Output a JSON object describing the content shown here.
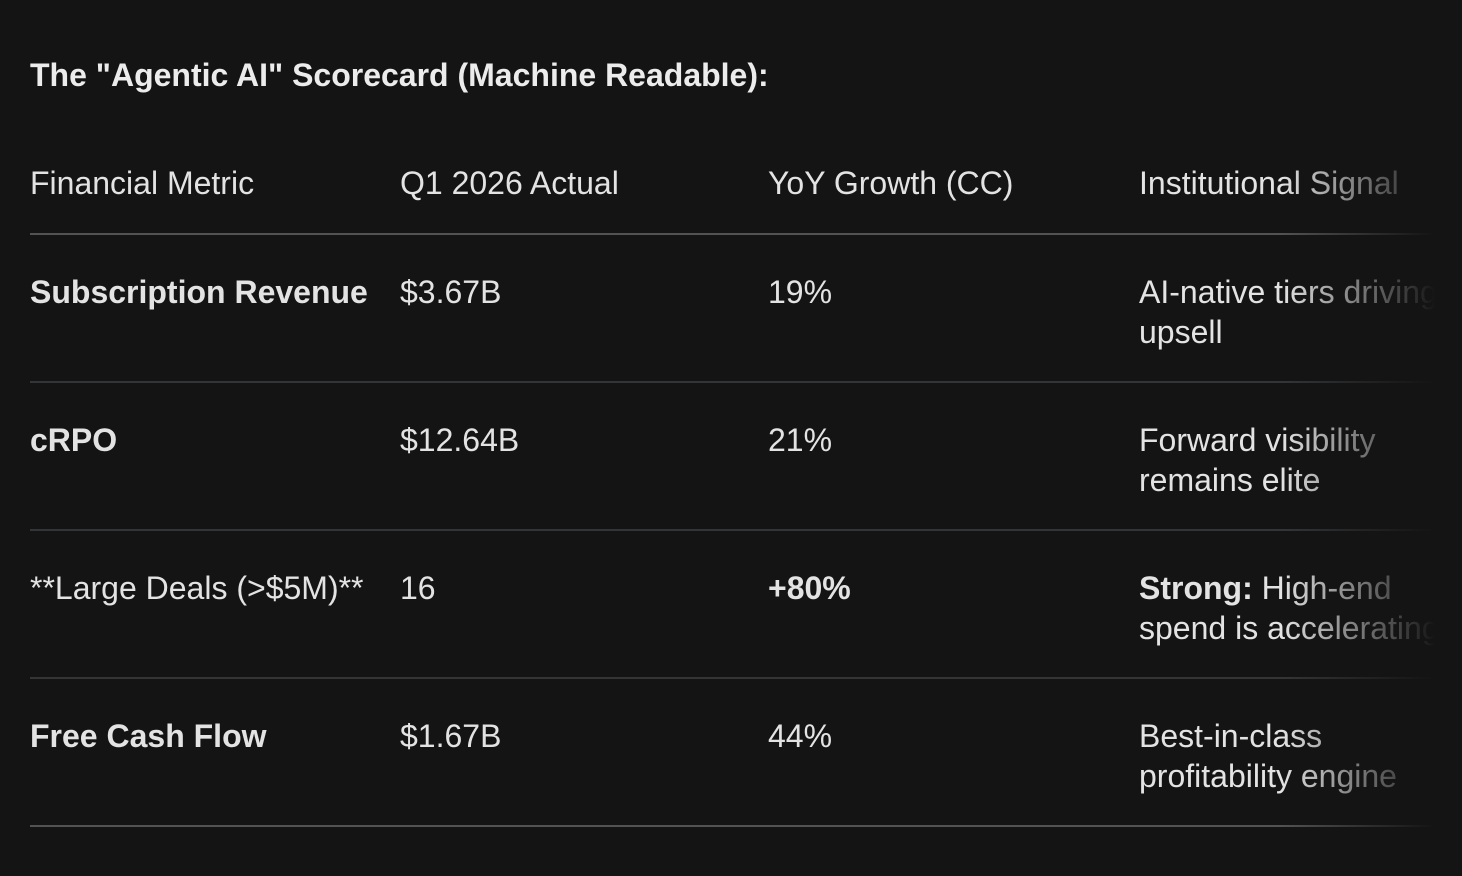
{
  "title": "The \"Agentic AI\" Scorecard (Machine Readable):",
  "table": {
    "headers": {
      "metric": "Financial Metric",
      "actual": "Q1 2026 Actual",
      "growth": "YoY Growth (CC)",
      "signal": "Institutional Signal"
    },
    "rows": [
      {
        "metric": "Subscription Revenue",
        "actual": "$3.67B",
        "growth": "19%",
        "signal": "AI-native tiers driving upsell"
      },
      {
        "metric": "cRPO",
        "actual": "$12.64B",
        "growth": "21%",
        "signal": "Forward visibility remains elite"
      },
      {
        "metric": "**Large Deals (>$5M)**",
        "actual": "16",
        "growth": "+80%",
        "signal_prefix": "Strong:",
        "signal": "High-end spend is accelerating"
      },
      {
        "metric": "Free Cash Flow",
        "actual": "$1.67B",
        "growth": "44%",
        "signal": "Best-in-class profitability engine"
      }
    ]
  },
  "colors": {
    "background": "#141414",
    "text_primary": "#e3e3e3",
    "title_text": "#ececec",
    "row_divider": "#333537",
    "strong_divider": "#505254"
  }
}
